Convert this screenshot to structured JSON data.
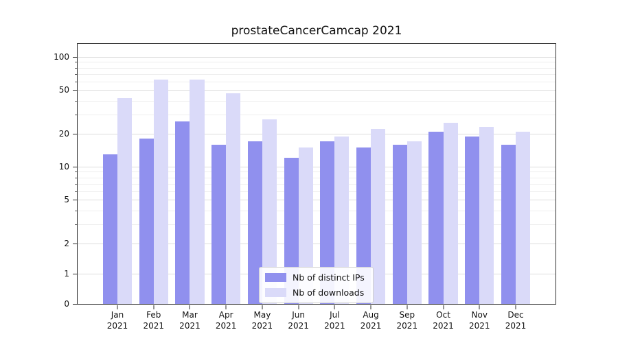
{
  "chart_data": {
    "type": "bar",
    "title": "prostateCancerCamcap 2021",
    "categories": [
      "Jan",
      "Feb",
      "Mar",
      "Apr",
      "May",
      "Jun",
      "Jul",
      "Aug",
      "Sep",
      "Oct",
      "Nov",
      "Dec"
    ],
    "x_year": "2021",
    "series": [
      {
        "name": "Nb of distinct IPs",
        "color": "#9090ee",
        "values": [
          13,
          18,
          26,
          16,
          17,
          12,
          17,
          15,
          16,
          21,
          19,
          16
        ]
      },
      {
        "name": "Nb of downloads",
        "color": "#dadaf9",
        "values": [
          42,
          62,
          62,
          47,
          27,
          15,
          19,
          22,
          17,
          25,
          23,
          21
        ]
      }
    ],
    "y_scale": "symlog",
    "y_ticks": [
      0,
      1,
      2,
      5,
      10,
      20,
      50,
      100
    ],
    "y_minor_ticks": [
      3,
      4,
      6,
      7,
      8,
      9,
      30,
      40,
      60,
      70,
      80,
      90
    ],
    "ylim": [
      0,
      135
    ],
    "grid": true,
    "legend_position": "lower center"
  }
}
